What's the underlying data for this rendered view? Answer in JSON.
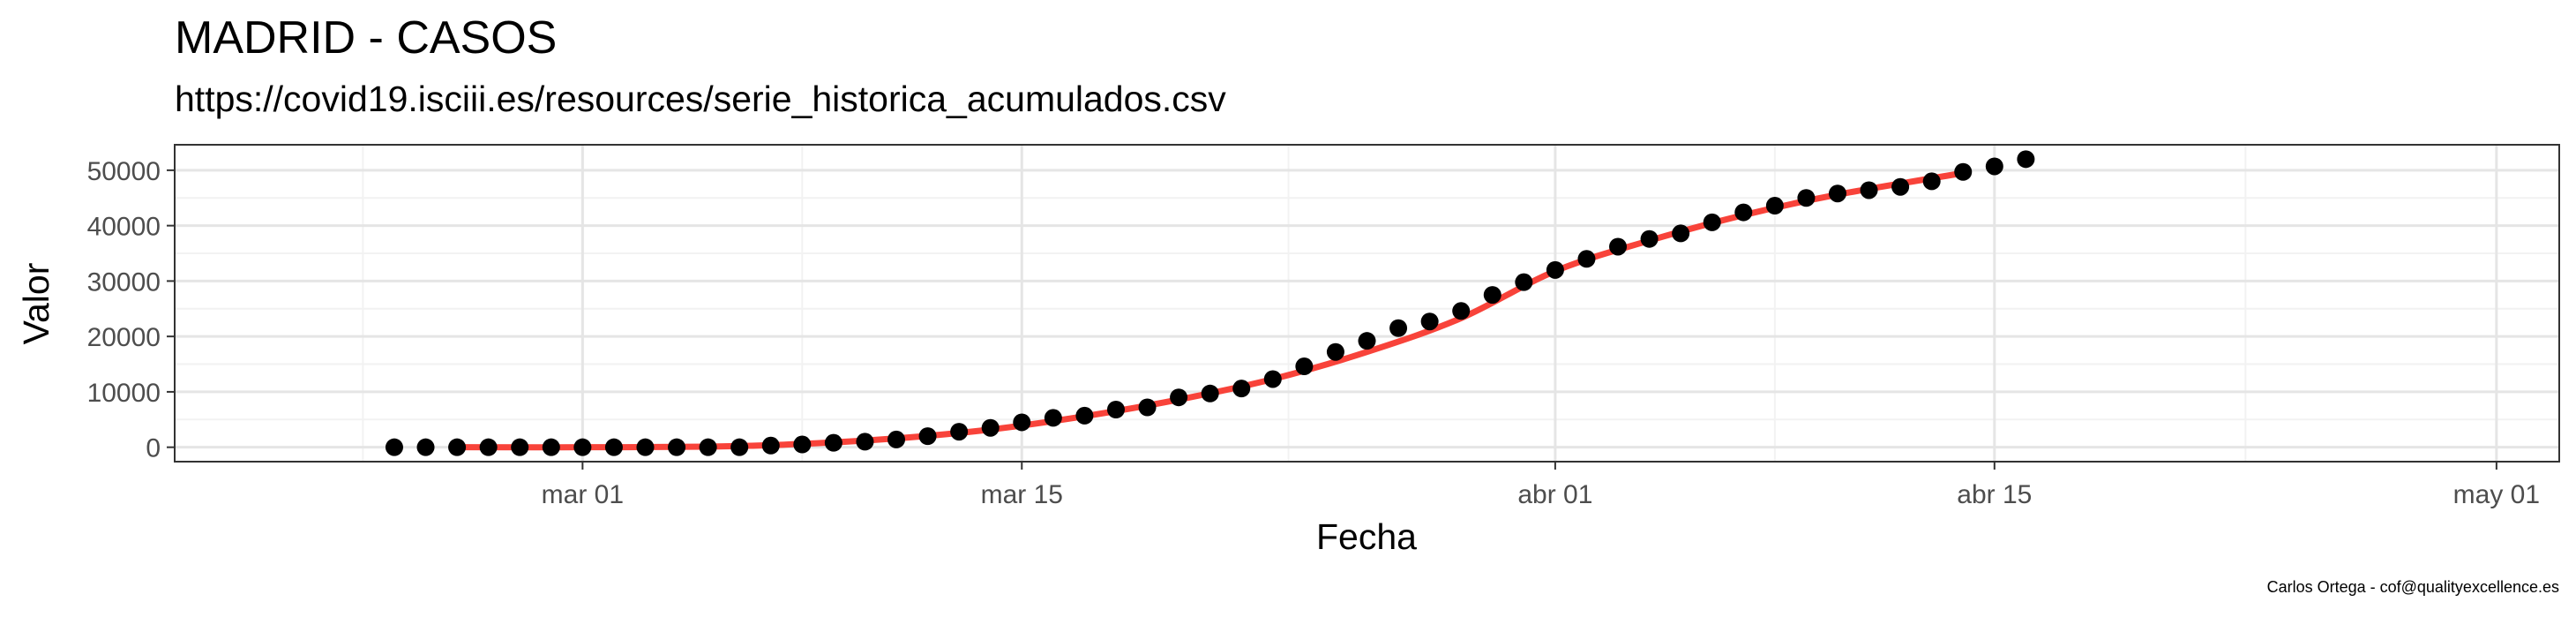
{
  "title": "MADRID - CASOS",
  "subtitle": "https://covid19.isciii.es/resources/serie_historica_acumulados.csv",
  "caption": "Carlos Ortega - cof@qualityexcellence.es",
  "colors": {
    "points": "#000000",
    "fit_line": "#f8433a",
    "grid_major": "#e5e5e5",
    "grid_minor": "#f2f2f2",
    "panel_border": "#333333"
  },
  "chart_data": {
    "type": "scatter",
    "xlabel": "Fecha",
    "ylabel": "Valor",
    "x_ticks": [
      {
        "date": "2020-03-01",
        "label": "mar 01"
      },
      {
        "date": "2020-03-15",
        "label": "mar 15"
      },
      {
        "date": "2020-04-01",
        "label": "abr 01"
      },
      {
        "date": "2020-04-15",
        "label": "abr 15"
      },
      {
        "date": "2020-05-01",
        "label": "may 01"
      }
    ],
    "y_ticks": [
      0,
      10000,
      20000,
      30000,
      40000,
      50000
    ],
    "ylim": [
      -2600,
      54600
    ],
    "xlim": [
      "2020-02-17",
      "2020-05-03"
    ],
    "grid": true,
    "series": [
      {
        "role": "points",
        "points": [
          {
            "date": "2020-02-24",
            "y": 0
          },
          {
            "date": "2020-02-25",
            "y": 0
          },
          {
            "date": "2020-02-26",
            "y": 0
          },
          {
            "date": "2020-02-27",
            "y": 0
          },
          {
            "date": "2020-02-28",
            "y": 0
          },
          {
            "date": "2020-02-29",
            "y": 0
          },
          {
            "date": "2020-03-01",
            "y": 0
          },
          {
            "date": "2020-03-02",
            "y": 0
          },
          {
            "date": "2020-03-03",
            "y": 0
          },
          {
            "date": "2020-03-04",
            "y": 0
          },
          {
            "date": "2020-03-05",
            "y": 0
          },
          {
            "date": "2020-03-06",
            "y": 0
          },
          {
            "date": "2020-03-07",
            "y": 300
          },
          {
            "date": "2020-03-08",
            "y": 500
          },
          {
            "date": "2020-03-09",
            "y": 800
          },
          {
            "date": "2020-03-10",
            "y": 1000
          },
          {
            "date": "2020-03-11",
            "y": 1400
          },
          {
            "date": "2020-03-12",
            "y": 2000
          },
          {
            "date": "2020-03-13",
            "y": 2800
          },
          {
            "date": "2020-03-14",
            "y": 3500
          },
          {
            "date": "2020-03-15",
            "y": 4500
          },
          {
            "date": "2020-03-16",
            "y": 5300
          },
          {
            "date": "2020-03-17",
            "y": 5700
          },
          {
            "date": "2020-03-18",
            "y": 6800
          },
          {
            "date": "2020-03-19",
            "y": 7200
          },
          {
            "date": "2020-03-20",
            "y": 9000
          },
          {
            "date": "2020-03-21",
            "y": 9700
          },
          {
            "date": "2020-03-22",
            "y": 10600
          },
          {
            "date": "2020-03-23",
            "y": 12300
          },
          {
            "date": "2020-03-24",
            "y": 14600
          },
          {
            "date": "2020-03-25",
            "y": 17200
          },
          {
            "date": "2020-03-26",
            "y": 19200
          },
          {
            "date": "2020-03-27",
            "y": 21500
          },
          {
            "date": "2020-03-28",
            "y": 22700
          },
          {
            "date": "2020-03-29",
            "y": 24600
          },
          {
            "date": "2020-03-30",
            "y": 27500
          },
          {
            "date": "2020-03-31",
            "y": 29800
          },
          {
            "date": "2020-04-01",
            "y": 32000
          },
          {
            "date": "2020-04-02",
            "y": 34000
          },
          {
            "date": "2020-04-03",
            "y": 36200
          },
          {
            "date": "2020-04-04",
            "y": 37600
          },
          {
            "date": "2020-04-05",
            "y": 38600
          },
          {
            "date": "2020-04-06",
            "y": 40600
          },
          {
            "date": "2020-04-07",
            "y": 42400
          },
          {
            "date": "2020-04-08",
            "y": 43600
          },
          {
            "date": "2020-04-09",
            "y": 45000
          },
          {
            "date": "2020-04-10",
            "y": 45800
          },
          {
            "date": "2020-04-11",
            "y": 46400
          },
          {
            "date": "2020-04-12",
            "y": 47000
          },
          {
            "date": "2020-04-13",
            "y": 48000
          },
          {
            "date": "2020-04-14",
            "y": 49700
          },
          {
            "date": "2020-04-15",
            "y": 50700
          },
          {
            "date": "2020-04-16",
            "y": 52000
          }
        ]
      },
      {
        "role": "fit_line",
        "points": [
          {
            "date": "2020-02-26",
            "y": 0
          },
          {
            "date": "2020-03-01",
            "y": 0
          },
          {
            "date": "2020-03-05",
            "y": 100
          },
          {
            "date": "2020-03-08",
            "y": 600
          },
          {
            "date": "2020-03-11",
            "y": 1600
          },
          {
            "date": "2020-03-14",
            "y": 3200
          },
          {
            "date": "2020-03-17",
            "y": 5600
          },
          {
            "date": "2020-03-20",
            "y": 8600
          },
          {
            "date": "2020-03-23",
            "y": 12300
          },
          {
            "date": "2020-03-26",
            "y": 17200
          },
          {
            "date": "2020-03-29",
            "y": 23300
          },
          {
            "date": "2020-04-01",
            "y": 31800
          },
          {
            "date": "2020-04-04",
            "y": 37300
          },
          {
            "date": "2020-04-07",
            "y": 41900
          },
          {
            "date": "2020-04-10",
            "y": 45600
          },
          {
            "date": "2020-04-14",
            "y": 49500
          }
        ]
      }
    ]
  }
}
